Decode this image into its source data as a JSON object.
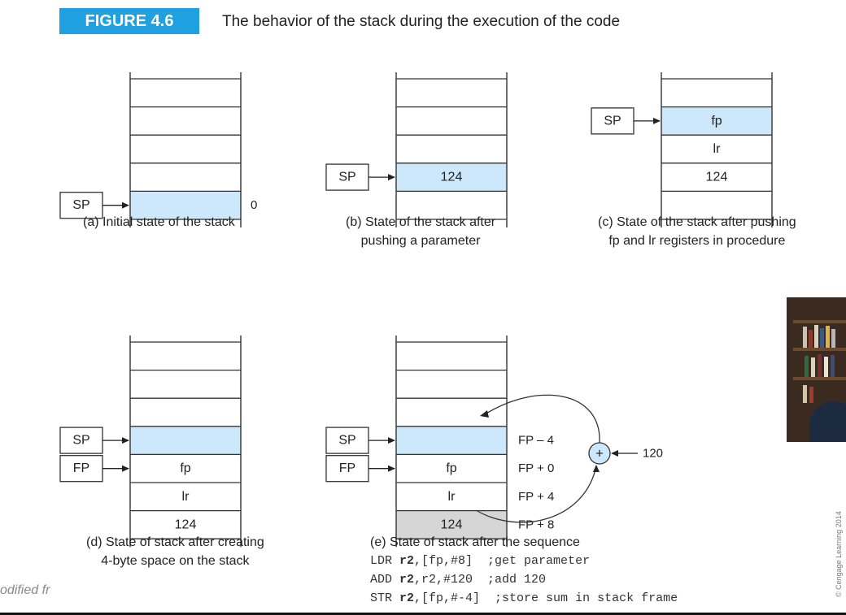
{
  "figure": {
    "label": "FIGURE 4.6",
    "title": "The behavior of the stack during the execution of the code"
  },
  "colors": {
    "badge": "#1fa0e0",
    "highlight": "#cce8fa",
    "gray_cell": "#d6d6d6"
  },
  "panels": {
    "a": {
      "cells": [
        "",
        "",
        "",
        "",
        ""
      ],
      "highlight": 4,
      "pointers": [
        {
          "label": "SP",
          "cell": 4
        }
      ],
      "side_label": "0",
      "caption": [
        "(a) Initial state of the stack"
      ]
    },
    "b": {
      "cells": [
        "",
        "",
        "",
        "124",
        ""
      ],
      "highlight": 3,
      "pointers": [
        {
          "label": "SP",
          "cell": 3
        }
      ],
      "caption": [
        "(b) State of the stack after",
        "pushing a parameter"
      ]
    },
    "c": {
      "cells": [
        "",
        "fp",
        "lr",
        "124",
        ""
      ],
      "highlight": 1,
      "pointers": [
        {
          "label": "SP",
          "cell": 1
        }
      ],
      "caption": [
        "(c) State of the stack after pushing",
        "fp and lr registers in procedure"
      ]
    },
    "d": {
      "cells": [
        "",
        "",
        "",
        "",
        "fp",
        "lr",
        "124"
      ],
      "highlight": 3,
      "pointers": [
        {
          "label": "SP",
          "cell": 3
        },
        {
          "label": "FP",
          "cell": 4
        }
      ],
      "caption": [
        "(d) State of stack after creating",
        "4-byte space on the stack"
      ]
    },
    "e": {
      "cells": [
        "",
        "",
        "",
        "",
        "fp",
        "lr",
        "124"
      ],
      "highlight": 3,
      "gray": 6,
      "pointers": [
        {
          "label": "SP",
          "cell": 3
        },
        {
          "label": "FP",
          "cell": 4
        }
      ],
      "offsets": [
        "FP – 4",
        "FP + 0",
        "FP + 4",
        "FP + 8"
      ],
      "adder_symbol": "+",
      "adder_input": "120",
      "caption": [
        "(e) State of stack after the sequence"
      ],
      "code": [
        {
          "op": "LDR ",
          "reg": "r2",
          "args": ",[fp,#8]  ;get parameter"
        },
        {
          "op": "ADD ",
          "reg": "r2",
          "args": ",r2,#120  ;add 120"
        },
        {
          "op": "STR ",
          "reg": "r2",
          "args": ",[fp,#-4]  ;store sum in stack frame"
        }
      ]
    }
  },
  "footer": {
    "text": "odified fr",
    "copyright": "© Cengage Learning 2014"
  }
}
